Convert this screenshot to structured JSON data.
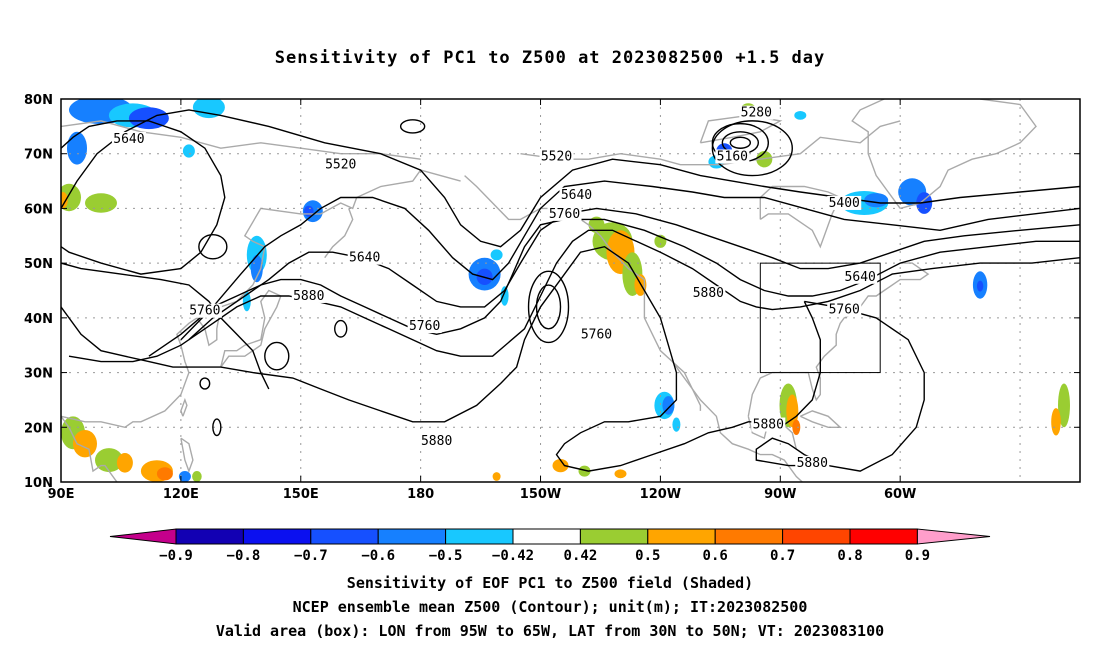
{
  "title": "Sensitivity of PC1 to Z500 at 2023082500 +1.5 day",
  "captions": [
    "Sensitivity of EOF PC1 to Z500 field (Shaded)",
    "NCEP ensemble mean Z500 (Contour); unit(m); IT:2023082500",
    "Valid area (box): LON from 95W to 65W, LAT from 30N to 50N; VT: 2023083100"
  ],
  "map": {
    "lon_range": [
      90,
      345
    ],
    "lat_range": [
      10,
      80
    ],
    "lat_ticks": [
      "10N",
      "20N",
      "30N",
      "40N",
      "50N",
      "60N",
      "70N",
      "80N"
    ],
    "lon_ticks": [
      "90E",
      "120E",
      "150E",
      "180",
      "150W",
      "120W",
      "90W",
      "60W"
    ],
    "valid_box": {
      "lon": [
        265,
        295
      ],
      "lat": [
        30,
        50
      ]
    },
    "contour_labels": [
      {
        "text": "5640",
        "lon": 107,
        "lat": 72.7
      },
      {
        "text": "5520",
        "lon": 160,
        "lat": 68
      },
      {
        "text": "5640",
        "lon": 166,
        "lat": 51
      },
      {
        "text": "5880",
        "lon": 152,
        "lat": 44
      },
      {
        "text": "5760",
        "lon": 126,
        "lat": 41.3
      },
      {
        "text": "5760",
        "lon": 181,
        "lat": 38.5
      },
      {
        "text": "5880",
        "lon": 184,
        "lat": 17.5
      },
      {
        "text": "5520",
        "lon": 214,
        "lat": 69.5
      },
      {
        "text": "5640",
        "lon": 219,
        "lat": 62.5
      },
      {
        "text": "5760",
        "lon": 216,
        "lat": 59
      },
      {
        "text": "5760",
        "lon": 224,
        "lat": 37
      },
      {
        "text": "5880",
        "lon": 252,
        "lat": 44.5
      },
      {
        "text": "5280",
        "lon": 264,
        "lat": 77.5
      },
      {
        "text": "5160",
        "lon": 258,
        "lat": 69.5
      },
      {
        "text": "5400",
        "lon": 286,
        "lat": 61
      },
      {
        "text": "5640",
        "lon": 290,
        "lat": 47.5
      },
      {
        "text": "5760",
        "lon": 286,
        "lat": 41.5
      },
      {
        "text": "5880",
        "lon": 267,
        "lat": 20.5
      },
      {
        "text": "5880",
        "lon": 278,
        "lat": 13.5
      }
    ]
  },
  "colorbar": {
    "labels": [
      "−0.9",
      "−0.8",
      "−0.7",
      "−0.6",
      "−0.5",
      "−0.42",
      "0.42",
      "0.5",
      "0.6",
      "0.7",
      "0.8",
      "0.9"
    ],
    "colors": [
      "#c4008b",
      "#1200b3",
      "#0b10f0",
      "#1650ff",
      "#1680ff",
      "#18c8ff",
      "#ffffff",
      "#9acd32",
      "#ffa500",
      "#ff7a00",
      "#ff4500",
      "#ff0000",
      "#ff9ecb"
    ]
  }
}
